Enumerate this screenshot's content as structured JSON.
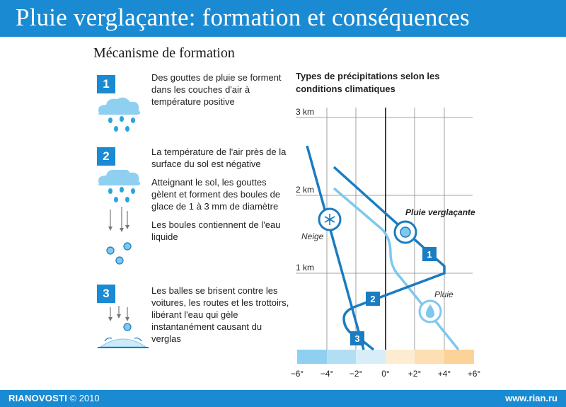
{
  "title": "Pluie verglaçante: formation et conséquences",
  "subtitle": "Mécanisme de formation",
  "steps": [
    {
      "number": "1",
      "paragraphs": [
        "Des gouttes de pluie se forment dans les couches d'air à température positive"
      ]
    },
    {
      "number": "2",
      "paragraphs": [
        "La température de l'air près de la surface du sol est négative",
        "Atteignant le sol, les gouttes gèlent et forment des boules de glace de 1 à 3 mm de diamètre",
        "Les boules contiennent de l'eau liquide"
      ]
    },
    {
      "number": "3",
      "paragraphs": [
        "Les balles se brisent contre les voitures, les routes et les trottoirs, libérant l'eau qui gèle instantanément causant du verglas"
      ]
    }
  ],
  "chart": {
    "title_line1": "Types de précipitations selon les",
    "title_line2": "conditions climatiques",
    "altitude_labels": [
      "3 km",
      "2 km",
      "1 km"
    ],
    "temp_labels": [
      "−6°",
      "−4°",
      "−2°",
      "0°",
      "+2°",
      "+4°",
      "+6°"
    ],
    "labels": {
      "freezing_rain": "Pluie verglaçante",
      "snow": "Neige",
      "rain": "Pluie"
    },
    "markers": [
      "1",
      "2",
      "3"
    ],
    "colors": {
      "dark_line": "#1a7cc1",
      "light_line": "#7ec8ee",
      "cold": "#8fd0f1",
      "warm": "#fcd9a4"
    }
  },
  "footer": {
    "brand": "RIANOVOSTI",
    "year": "© 2010",
    "site": "www.rian.ru"
  }
}
